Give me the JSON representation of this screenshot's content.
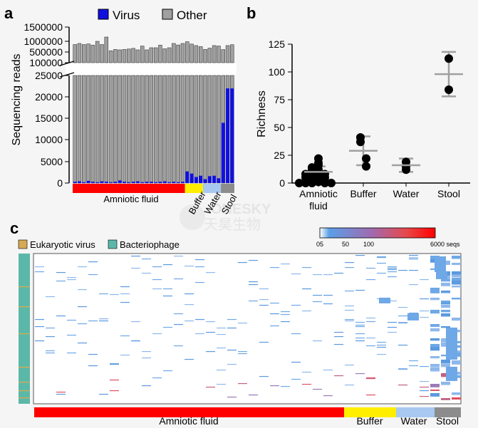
{
  "panels": {
    "a": "a",
    "b": "b",
    "c": "c"
  },
  "chart_data": [
    {
      "id": "a",
      "type": "bar",
      "stacked": true,
      "broken_y_axis": true,
      "ylabel": "Sequencing reads",
      "yticks_lower": [
        "0",
        "5000",
        "10000",
        "15000",
        "20000",
        "25000"
      ],
      "yticks_upper": [
        "100000",
        "500000",
        "1000000",
        "1500000"
      ],
      "legend": [
        {
          "label": "Virus",
          "color": "#1010e0"
        },
        {
          "label": "Other",
          "color": "#a0a0a0"
        }
      ],
      "legend_position": "top",
      "series": [
        {
          "name": "Other",
          "values": [
            850000,
            900000,
            850000,
            880000,
            820000,
            1000000,
            850000,
            1150000,
            560000,
            620000,
            600000,
            620000,
            640000,
            670000,
            600000,
            780000,
            600000,
            700000,
            700000,
            820000,
            650000,
            700000,
            900000,
            830000,
            900000,
            980000,
            870000,
            800000,
            750000,
            620000,
            680000,
            800000,
            780000,
            600000,
            780000,
            820000
          ]
        },
        {
          "name": "Virus",
          "values": [
            300,
            400,
            200,
            500,
            300,
            200,
            400,
            300,
            200,
            300,
            600,
            300,
            200,
            300,
            400,
            200,
            300,
            300,
            200,
            300,
            400,
            200,
            300,
            200,
            300,
            2700,
            2200,
            1400,
            1700,
            900,
            1600,
            1700,
            1100,
            14000,
            22000,
            22000
          ]
        }
      ],
      "groups": [
        {
          "label": "Amniotic fluid",
          "count": 25,
          "color": "#ff0000"
        },
        {
          "label": "Buffer",
          "count": 4,
          "color": "#ffee00"
        },
        {
          "label": "Water",
          "count": 4,
          "color": "#a8c8f0"
        },
        {
          "label": "Stool",
          "count": 3,
          "color": "#8c8c8c"
        }
      ]
    },
    {
      "id": "b",
      "type": "scatter",
      "ylabel": "Richness",
      "ylim": [
        0,
        125
      ],
      "yticks": [
        "0",
        "25",
        "50",
        "75",
        "100",
        "125"
      ],
      "categories": [
        "Amniotic fluid",
        "Buffer",
        "Water",
        "Stool"
      ],
      "points": [
        [
          22,
          18,
          16,
          14,
          12,
          12,
          10,
          9,
          8,
          8,
          7,
          6,
          5,
          5,
          4,
          3,
          2,
          1,
          0,
          0,
          0,
          0,
          0
        ],
        [
          41,
          37,
          22,
          15
        ],
        [
          19,
          15,
          12
        ],
        [
          112,
          84
        ]
      ],
      "mean": [
        10,
        29,
        16,
        98
      ],
      "sd_low": [
        5,
        16,
        10,
        78
      ],
      "sd_high": [
        15,
        42,
        22,
        118
      ],
      "point_color": "#000000",
      "errorbar_color": "#a0a0a0"
    },
    {
      "id": "c",
      "type": "heatmap",
      "colorbar_ticks": [
        "05",
        "50",
        "100",
        "6000 seqs"
      ],
      "legend": [
        {
          "label": "Eukaryotic virus",
          "color": "#d6aa55"
        },
        {
          "label": "Bacteriophage",
          "color": "#5bb8a8"
        }
      ],
      "groups": [
        {
          "label": "Amniotic fluid",
          "color": "#ff0000"
        },
        {
          "label": "Buffer",
          "color": "#ffee00"
        },
        {
          "label": "Water",
          "color": "#a8c8f0"
        },
        {
          "label": "Stool",
          "color": "#8c8c8c"
        }
      ]
    }
  ],
  "watermark": "ONESKY 天昊生物"
}
